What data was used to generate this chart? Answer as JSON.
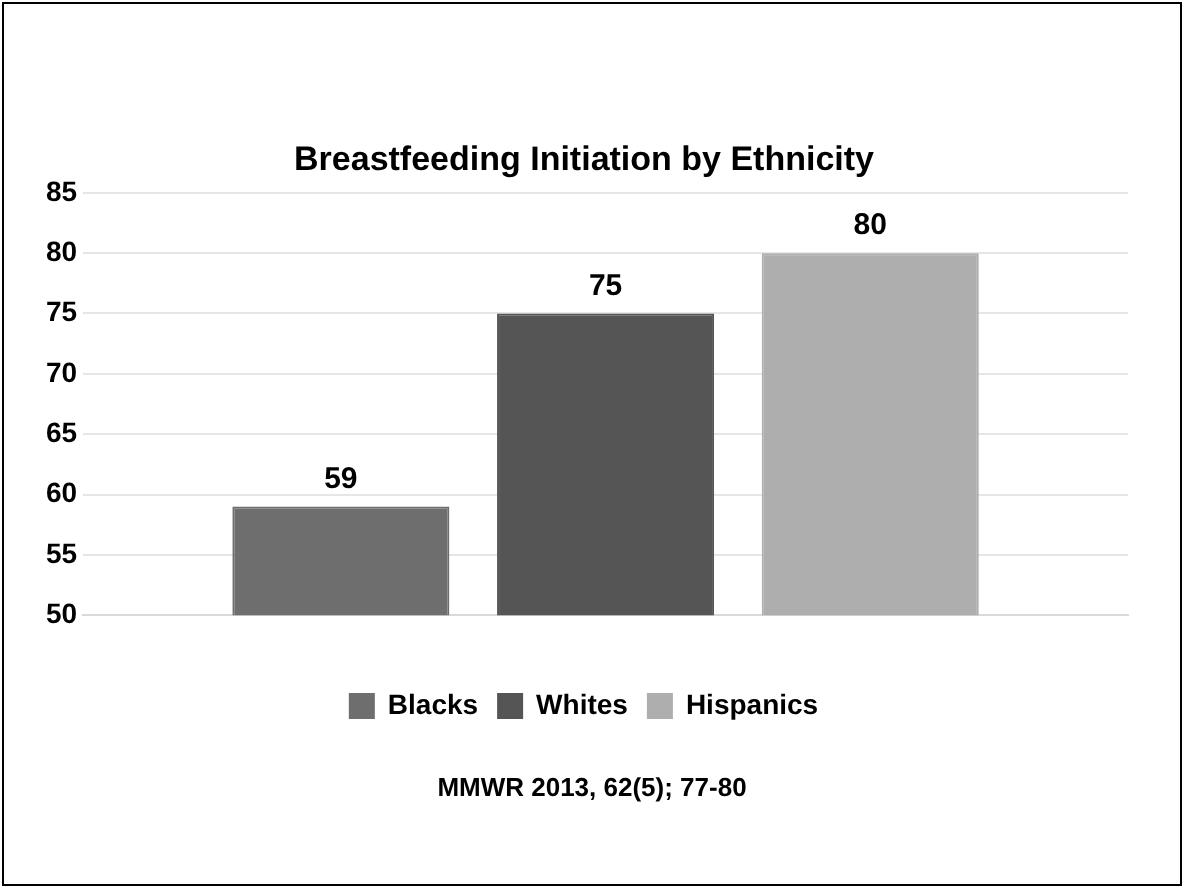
{
  "chart_data": {
    "type": "bar",
    "title": "Breastfeeding Initiation by Ethnicity",
    "categories": [
      null
    ],
    "series": [
      {
        "name": "Blacks",
        "color": "#6e6e6e",
        "values": [
          59
        ]
      },
      {
        "name": "Whites",
        "color": "#555555",
        "values": [
          75
        ]
      },
      {
        "name": "Hispanics",
        "color": "#aeaeae",
        "values": [
          80
        ]
      }
    ],
    "ylim": [
      50,
      85
    ],
    "yticks": [
      50,
      55,
      60,
      65,
      70,
      75,
      80,
      85
    ],
    "grid": "y",
    "legend": "bottom",
    "data_labels": true,
    "annotations": [
      "MMWR 2013, 62(5); 77-80"
    ]
  }
}
